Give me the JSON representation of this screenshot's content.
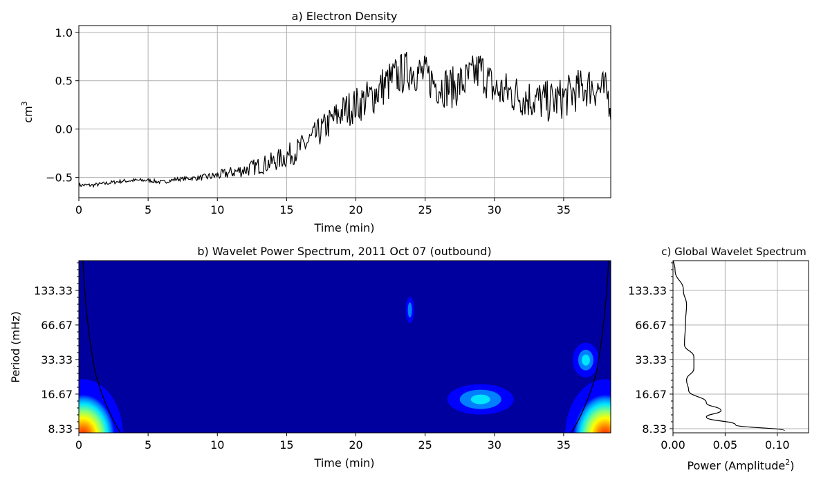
{
  "chart_data": [
    {
      "id": "a",
      "type": "line",
      "title": "a) Electron Density",
      "xlabel": "Time (min)",
      "ylabel": "cm",
      "ylabel_superscript": "3",
      "xlim": [
        0,
        38.4
      ],
      "ylim": [
        -0.71,
        1.07
      ],
      "xticks": [
        0,
        5,
        10,
        15,
        20,
        25,
        30,
        35
      ],
      "xtick_labels": [
        "0",
        "5",
        "10",
        "15",
        "20",
        "25",
        "30",
        "35"
      ],
      "yticks": [
        -0.5,
        0.0,
        0.5,
        1.0
      ],
      "ytick_labels": [
        "−0.5",
        "0.0",
        "0.5",
        "1.0"
      ],
      "grid": true,
      "series": [
        {
          "color": "#000000",
          "x": [
            0,
            1,
            2,
            3,
            4,
            5,
            6,
            7,
            8,
            9,
            10,
            11,
            12,
            13,
            14,
            15,
            16,
            17,
            18,
            19,
            20,
            21,
            22,
            23,
            24,
            25,
            26,
            27,
            28,
            29,
            30,
            31,
            32,
            33,
            34,
            35,
            36,
            37,
            38,
            38.4
          ],
          "y": [
            -0.58,
            -0.58,
            -0.56,
            -0.54,
            -0.53,
            -0.53,
            -0.55,
            -0.52,
            -0.51,
            -0.5,
            -0.48,
            -0.45,
            -0.42,
            -0.38,
            -0.34,
            -0.28,
            -0.2,
            -0.08,
            0.05,
            0.18,
            0.25,
            0.32,
            0.45,
            0.55,
            0.62,
            0.55,
            0.45,
            0.43,
            0.5,
            0.62,
            0.4,
            0.38,
            0.34,
            0.3,
            0.28,
            0.32,
            0.4,
            0.45,
            0.38,
            0.3
          ]
        }
      ]
    },
    {
      "id": "b",
      "type": "heatmap",
      "title": "b) Wavelet Power Spectrum, 2011 Oct 07 (outbound)",
      "xlabel": "Time (min)",
      "ylabel": "Period (mHz)",
      "xlim": [
        0,
        38.4
      ],
      "xticks": [
        0,
        5,
        10,
        15,
        20,
        25,
        30,
        35
      ],
      "xtick_labels": [
        "0",
        "5",
        "10",
        "15",
        "20",
        "25",
        "30",
        "35"
      ],
      "yticks": [
        133.33,
        66.67,
        33.33,
        16.67,
        8.33
      ],
      "ytick_labels": [
        "133.33",
        "66.67",
        "33.33",
        "16.67",
        "8.33"
      ],
      "colormap": [
        "#00009f",
        "#0000ff",
        "#007fff",
        "#00e5ff",
        "#7fff7f",
        "#ffff00",
        "#ff7f00",
        "#ff0000"
      ],
      "features": [
        {
          "x": 23.9,
          "y": 90,
          "level": 2
        },
        {
          "x": 29.0,
          "y": 15,
          "level": 3
        },
        {
          "x": 36.6,
          "y": 33,
          "level": 3
        },
        {
          "x": 0.3,
          "y": 8.5,
          "level": 7
        },
        {
          "x": 38.0,
          "y": 8.5,
          "level": 7
        }
      ]
    },
    {
      "id": "c",
      "type": "line",
      "title": "c) Global Wavelet Spectrum",
      "xlabel": "Power (Amplitude",
      "xlabel_superscript": "2",
      "xlabel_suffix": ")",
      "xlim": [
        0.0,
        0.13
      ],
      "xticks": [
        0.0,
        0.05,
        0.1
      ],
      "xtick_labels": [
        "0.00",
        "0.05",
        "0.10"
      ],
      "yticks": [
        133.33,
        66.67,
        33.33,
        16.67,
        8.33
      ],
      "ytick_labels": [
        "133.33",
        "66.67",
        "33.33",
        "16.67",
        "8.33"
      ],
      "grid": true,
      "series": [
        {
          "color": "#000000",
          "power": [
            0.0,
            0.002,
            0.01,
            0.013,
            0.012,
            0.011,
            0.02,
            0.02,
            0.013,
            0.015,
            0.032,
            0.046,
            0.032,
            0.06,
            0.107
          ],
          "period": [
            260,
            200,
            133,
            100,
            70,
            45,
            35,
            28,
            22,
            18,
            14,
            12,
            10.5,
            9,
            8
          ]
        }
      ]
    }
  ]
}
